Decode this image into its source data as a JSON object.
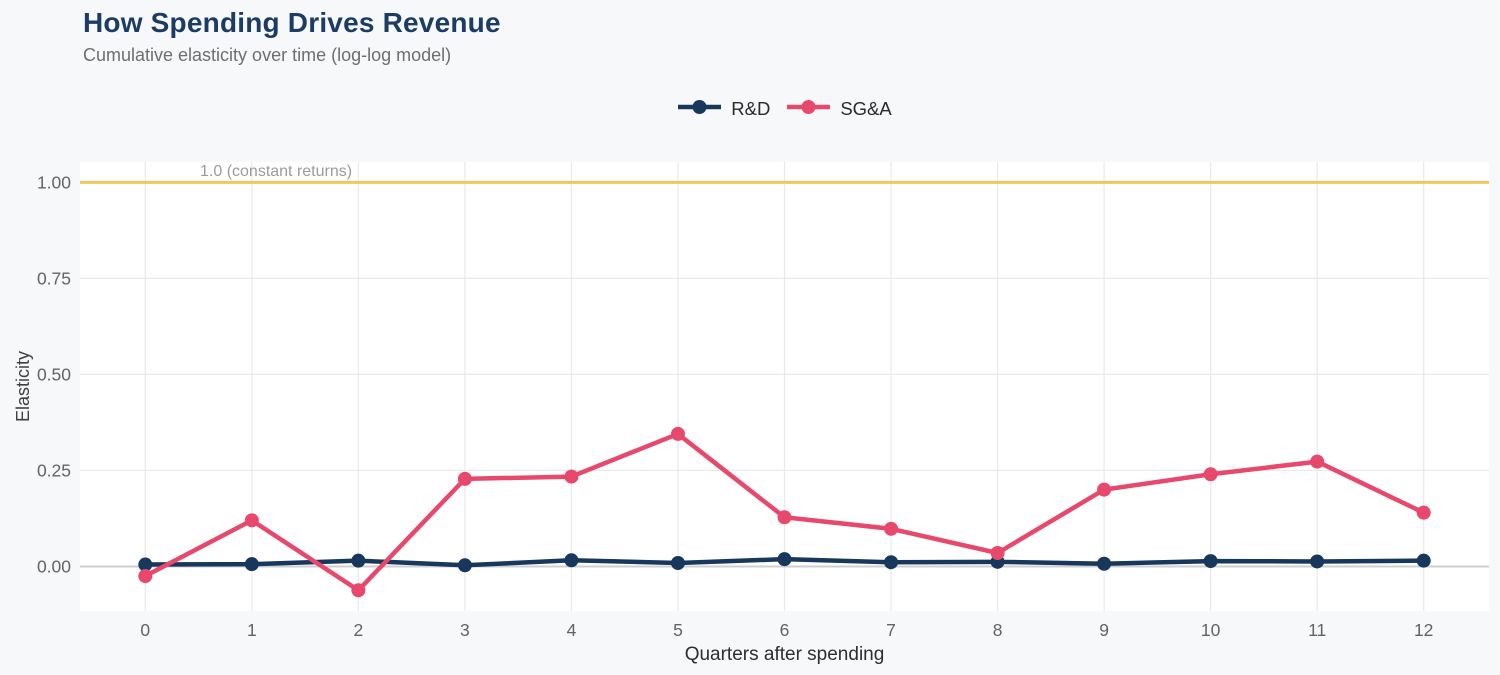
{
  "header": {
    "title": "How Spending Drives Revenue",
    "subtitle": "Cumulative elasticity over time (log-log model)"
  },
  "colors": {
    "background": "#f7f8fa",
    "panel": "#ffffff",
    "grid": "#e9e9e9",
    "zeroline": "#cfcfcf",
    "title": "#1c3c66",
    "subtitle": "#6e6e6e",
    "legend_text": "#2b2b2b",
    "tick_label": "#636363",
    "x_axis_title": "#2e2e2e",
    "y_axis_title": "#3f3f3f",
    "annotation": "#9b9b9b"
  },
  "chart_data": {
    "type": "line",
    "title": "How Spending Drives Revenue",
    "subtitle": "Cumulative elasticity over time (log-log model)",
    "xlabel": "Quarters after spending",
    "ylabel": "Elasticity",
    "x": [
      0,
      1,
      2,
      3,
      4,
      5,
      6,
      7,
      8,
      9,
      10,
      11,
      12
    ],
    "series": [
      {
        "name": "R&D",
        "color": "#17375c",
        "values": [
          0.005,
          0.006,
          0.015,
          0.003,
          0.016,
          0.009,
          0.019,
          0.011,
          0.012,
          0.007,
          0.014,
          0.013,
          0.015
        ]
      },
      {
        "name": "SG&A",
        "color": "#e8486b",
        "values": [
          -0.025,
          0.12,
          -0.062,
          0.228,
          0.234,
          0.345,
          0.128,
          0.098,
          0.035,
          0.2,
          0.24,
          0.273,
          0.14
        ]
      }
    ],
    "yticks": [
      0,
      0.25,
      0.5,
      0.75,
      1
    ],
    "ytick_labels": [
      "0.00",
      "0.25",
      "0.50",
      "0.75",
      "1.00"
    ],
    "xtick_labels": [
      "0",
      "1",
      "2",
      "3",
      "4",
      "5",
      "6",
      "7",
      "8",
      "9",
      "10",
      "11",
      "12"
    ],
    "xlim": [
      -0.613,
      12.613
    ],
    "ylim": [
      -0.116,
      1.053
    ],
    "grid": true,
    "legend_position": "top-center",
    "reference_line": {
      "value": 1.0,
      "label": "1.0 (constant returns)",
      "color": "#f0c75f"
    }
  }
}
